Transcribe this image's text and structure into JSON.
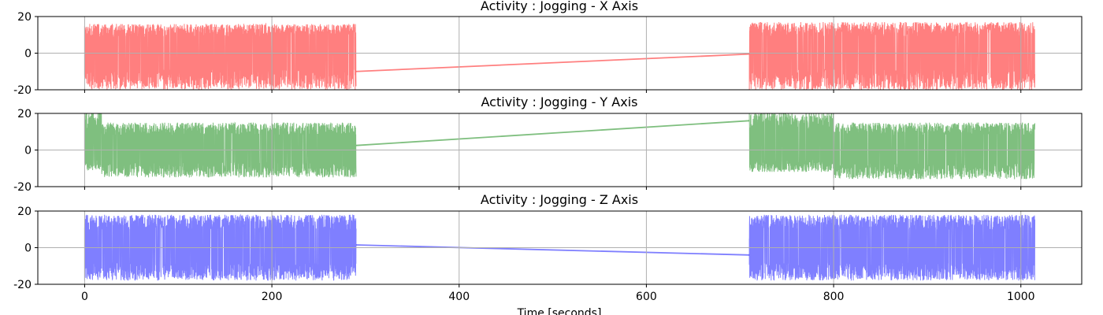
{
  "chart_data": [
    {
      "type": "line",
      "title": "Activity : Jogging - X Axis",
      "color": "#ff0000",
      "xlim": [
        -50,
        1065
      ],
      "ylim": [
        -20,
        20
      ],
      "yticks": [
        20,
        0,
        -20
      ],
      "grid": true,
      "series": [
        {
          "segments": [
            {
              "x": [
                0,
                290
              ],
              "lower": -20,
              "upper": 16,
              "start": -12
            },
            {
              "x": [
                710,
                1015
              ],
              "lower": -20,
              "upper": 17,
              "start": -1
            }
          ],
          "gap_line": {
            "x": [
              290,
              710
            ],
            "y": [
              -10,
              -0.5
            ]
          }
        }
      ]
    },
    {
      "type": "line",
      "title": "Activity : Jogging - Y Axis",
      "color": "#008000",
      "xlim": [
        -50,
        1065
      ],
      "ylim": [
        -20,
        20
      ],
      "yticks": [
        20,
        0,
        -20
      ],
      "grid": true,
      "series": [
        {
          "segments": [
            {
              "x": [
                0,
                290
              ],
              "lower": -15,
              "upper": 15,
              "start": 0,
              "burst_x": [
                0,
                18
              ]
            },
            {
              "x": [
                710,
                1015
              ],
              "lower": -16,
              "upper": 15,
              "start": 20,
              "burst_x": [
                710,
                800
              ]
            }
          ],
          "gap_line": {
            "x": [
              290,
              710
            ],
            "y": [
              2.5,
              16
            ]
          }
        }
      ]
    },
    {
      "type": "line",
      "title": "Activity : Jogging - Z Axis",
      "color": "#0000ff",
      "xlim": [
        -50,
        1065
      ],
      "ylim": [
        -20,
        20
      ],
      "yticks": [
        20,
        0,
        -20
      ],
      "xticks": [
        0,
        200,
        400,
        600,
        800,
        1000
      ],
      "xlabel": "Time [seconds]",
      "grid": true,
      "series": [
        {
          "segments": [
            {
              "x": [
                0,
                290
              ],
              "lower": -18,
              "upper": 18,
              "start": -18
            },
            {
              "x": [
                710,
                1015
              ],
              "lower": -18,
              "upper": 18,
              "start": 5
            }
          ],
          "gap_line": {
            "x": [
              290,
              710
            ],
            "y": [
              1.5,
              -4
            ]
          }
        }
      ]
    }
  ]
}
